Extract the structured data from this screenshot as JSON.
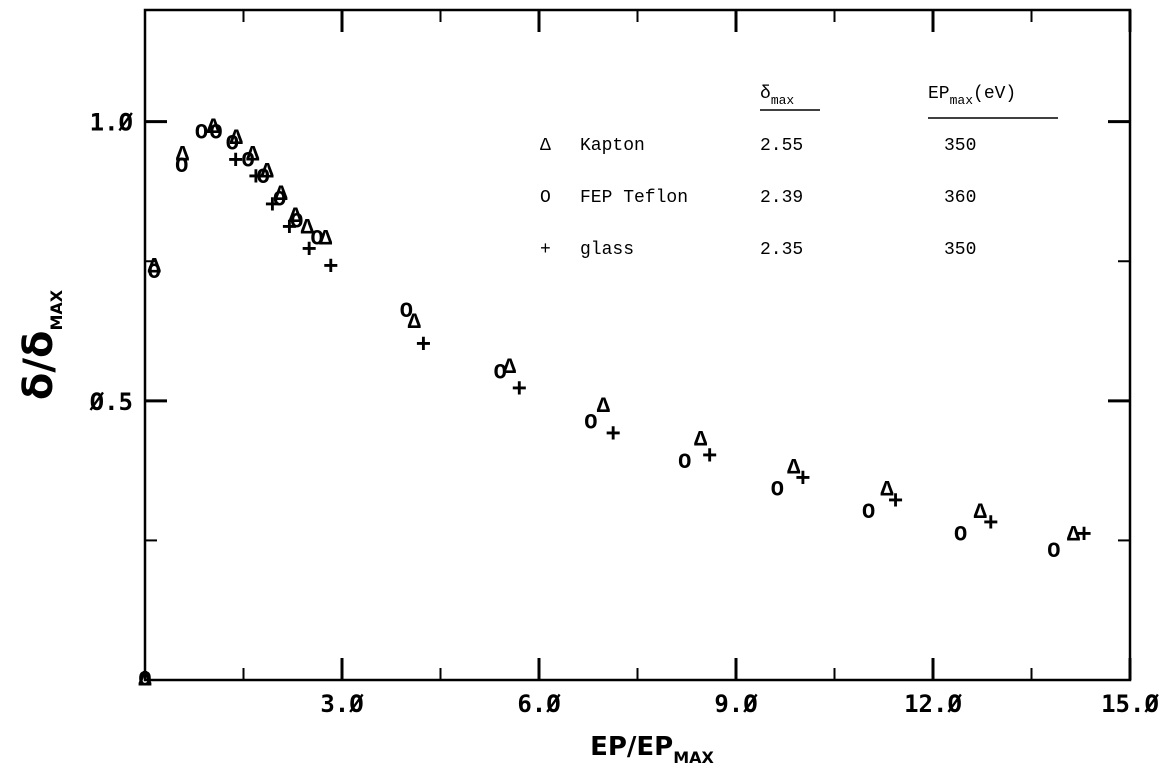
{
  "chart_data": {
    "type": "scatter",
    "title": "",
    "xlabel": "EP/EP",
    "xlabel_sub": "MAX",
    "ylabel": "δ/δ",
    "ylabel_sub": "MAX",
    "xlim": [
      0,
      15
    ],
    "ylim": [
      0,
      1.2
    ],
    "x_ticks": [
      {
        "value": 3,
        "label": "3.Ø"
      },
      {
        "value": 6,
        "label": "6.Ø"
      },
      {
        "value": 9,
        "label": "9.Ø"
      },
      {
        "value": 12,
        "label": "12.Ø"
      },
      {
        "value": 15,
        "label": "15.Ø"
      }
    ],
    "x_minor_ticks": [
      1.5,
      4.5,
      7.5,
      10.5,
      13.5
    ],
    "y_ticks": [
      {
        "value": 1.0,
        "label": "1.Ø"
      },
      {
        "value": 0.5,
        "label": "Ø.5"
      }
    ],
    "y_minor_ticks": [
      0.25,
      0.75
    ],
    "grid": false,
    "legend": {
      "placement": "top-right",
      "header_material": "",
      "header_delta": "δ",
      "header_delta_sub": "max",
      "header_ep": "EP",
      "header_ep_sub": "max",
      "header_ep_unit": "(eV)",
      "rows": [
        {
          "symbol": "Δ",
          "name": "Kapton",
          "delta_max": "2.55",
          "ep_max": "350"
        },
        {
          "symbol": "O",
          "name": "FEP Teflon",
          "delta_max": "2.39",
          "ep_max": "360"
        },
        {
          "symbol": "+",
          "name": "glass",
          "delta_max": "2.35",
          "ep_max": "350"
        }
      ]
    },
    "series": [
      {
        "name": "Kapton",
        "marker": "Δ",
        "points": [
          [
            0.0,
            0.0
          ],
          [
            0.14,
            0.74
          ],
          [
            0.57,
            0.94
          ],
          [
            1.04,
            0.99
          ],
          [
            1.39,
            0.97
          ],
          [
            1.64,
            0.94
          ],
          [
            1.86,
            0.91
          ],
          [
            2.07,
            0.87
          ],
          [
            2.29,
            0.83
          ],
          [
            2.47,
            0.81
          ],
          [
            2.75,
            0.79
          ],
          [
            4.1,
            0.64
          ],
          [
            5.55,
            0.56
          ],
          [
            6.98,
            0.49
          ],
          [
            8.46,
            0.43
          ],
          [
            9.88,
            0.38
          ],
          [
            11.3,
            0.34
          ],
          [
            12.72,
            0.3
          ],
          [
            14.14,
            0.26
          ]
        ]
      },
      {
        "name": "FEP Teflon",
        "marker": "O",
        "points": [
          [
            0.0,
            0.0
          ],
          [
            0.14,
            0.73
          ],
          [
            0.56,
            0.92
          ],
          [
            0.86,
            0.98
          ],
          [
            1.08,
            0.98
          ],
          [
            1.33,
            0.96
          ],
          [
            1.57,
            0.93
          ],
          [
            1.8,
            0.9
          ],
          [
            2.05,
            0.86
          ],
          [
            2.31,
            0.82
          ],
          [
            2.62,
            0.79
          ],
          [
            3.98,
            0.66
          ],
          [
            5.41,
            0.55
          ],
          [
            6.79,
            0.46
          ],
          [
            8.22,
            0.39
          ],
          [
            9.63,
            0.34
          ],
          [
            11.02,
            0.3
          ],
          [
            12.42,
            0.26
          ],
          [
            13.84,
            0.23
          ]
        ]
      },
      {
        "name": "glass",
        "marker": "+",
        "points": [
          [
            1.38,
            0.93
          ],
          [
            1.69,
            0.9
          ],
          [
            1.94,
            0.85
          ],
          [
            2.2,
            0.81
          ],
          [
            2.5,
            0.77
          ],
          [
            2.83,
            0.74
          ],
          [
            4.24,
            0.6
          ],
          [
            5.7,
            0.52
          ],
          [
            7.13,
            0.44
          ],
          [
            8.6,
            0.4
          ],
          [
            10.02,
            0.36
          ],
          [
            11.43,
            0.32
          ],
          [
            12.88,
            0.28
          ],
          [
            14.3,
            0.26
          ]
        ]
      }
    ]
  }
}
